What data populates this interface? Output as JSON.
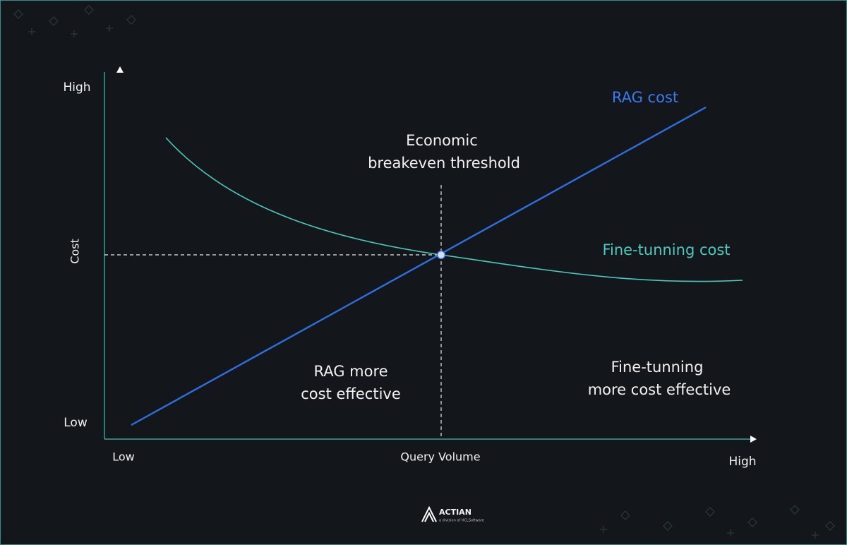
{
  "axes": {
    "y_high": "High",
    "y_label": "Cost",
    "y_low": "Low",
    "x_low": "Low",
    "x_label": "Query Volume",
    "x_high": "High"
  },
  "curves": {
    "rag": "RAG cost",
    "fine_tuning": "Fine-tunning cost"
  },
  "annotations": {
    "threshold": [
      "Economic",
      "breakeven threshold"
    ],
    "rag_region": [
      "RAG more",
      "cost effective"
    ],
    "ft_region": [
      "Fine-tunning",
      "more cost effective"
    ]
  },
  "logo": {
    "name": "ACTIAN",
    "tagline": "a division of HCLSoftware"
  }
}
